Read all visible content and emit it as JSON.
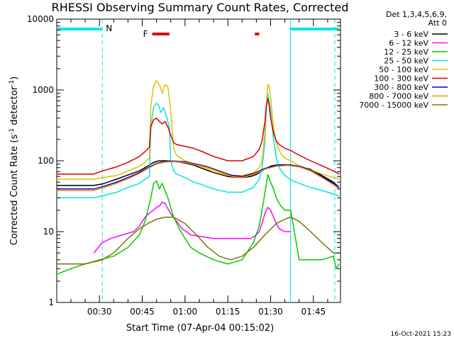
{
  "chart_data": {
    "type": "line",
    "title": "RHESSI Observing Summary Count Rates, Corrected",
    "xlabel": "Start Time (07-Apr-04 00:15:02)",
    "ylabel": "Corrected Count Rate (s",
    "ylabel_sup": "-1",
    "ylabel_mid": " detector",
    "ylabel_end": ")",
    "y_scale": "log",
    "ylim": [
      1,
      10000
    ],
    "xlim_minutes": [
      15.03,
      114.5
    ],
    "x_tick_labels": [
      "00:30",
      "00:45",
      "01:00",
      "01:15",
      "01:30",
      "01:45"
    ],
    "x_tick_minutes": [
      30,
      45,
      60,
      75,
      90,
      105
    ],
    "y_tick_labels": [
      "1",
      "10",
      "100",
      "1000",
      "10000"
    ],
    "y_tick_values": [
      1,
      10,
      100,
      1000,
      10000
    ],
    "legend_header": [
      "Det 1,3,4,5,6,9,",
      "Att 0"
    ],
    "legend_position": "right",
    "footer_date": "16-Oct-2021 15:23",
    "markers": {
      "night_label": "N",
      "flare_label": "F",
      "night_color": "#00e5e5",
      "flare_color": "#dd0000",
      "night_intervals_min": [
        [
          15.03,
          31.0
        ],
        [
          97.0,
          114.0
        ]
      ],
      "flare_intervals_min": [
        [
          48.5,
          54.5
        ],
        [
          84.5,
          86.0
        ]
      ],
      "boundaries_min": [
        31.0,
        97.0,
        112.5
      ]
    },
    "series": [
      {
        "name": "3 - 6 keV",
        "color": "#000000",
        "x": [
          15,
          28,
          31,
          36,
          40,
          44,
          46,
          48,
          49,
          50,
          51,
          52,
          53,
          55,
          57,
          60,
          63,
          66,
          70,
          75,
          80,
          83,
          85,
          86,
          87,
          88,
          89,
          90,
          91,
          92,
          93,
          94,
          95,
          97,
          100,
          104,
          108,
          112,
          114
        ],
        "y": [
          45,
          45,
          47,
          55,
          63,
          72,
          80,
          90,
          95,
          98,
          100,
          100,
          100,
          99,
          97,
          93,
          87,
          78,
          68,
          60,
          58,
          60,
          64,
          68,
          72,
          76,
          80,
          84,
          86,
          87,
          88,
          88,
          88,
          87,
          83,
          76,
          62,
          50,
          42
        ]
      },
      {
        "name": "6 - 12 keV",
        "color": "#ff00ff",
        "x": [
          28,
          31,
          34,
          38,
          42,
          44,
          46,
          48,
          49,
          50,
          51,
          52,
          53,
          54,
          55,
          57,
          59,
          62,
          66,
          70,
          75,
          80,
          83,
          85,
          86,
          87,
          88,
          89,
          90,
          91,
          92,
          93,
          95,
          97
        ],
        "y": [
          5,
          7,
          8,
          9,
          10,
          12,
          16,
          19,
          20,
          22,
          23,
          26,
          25,
          21,
          18,
          14,
          11,
          9,
          8.5,
          8,
          8,
          8,
          8,
          9,
          10,
          13,
          18,
          22,
          20,
          16,
          13,
          11,
          10,
          10
        ]
      },
      {
        "name": "12 - 25 keV",
        "color": "#00cc00",
        "x": [
          15,
          20,
          25,
          30,
          35,
          40,
          44,
          46,
          48,
          49,
          50,
          51,
          52,
          53,
          54,
          55,
          56,
          58,
          60,
          62,
          65,
          70,
          75,
          80,
          84,
          86,
          87,
          88,
          89,
          90,
          91,
          92,
          93,
          94,
          95,
          97,
          98,
          100,
          104,
          108,
          112,
          113,
          114
        ],
        "y": [
          2.5,
          3,
          3.5,
          4,
          4.5,
          6,
          9,
          14,
          30,
          48,
          52,
          40,
          48,
          38,
          30,
          22,
          16,
          11,
          8,
          6,
          5,
          4,
          3.5,
          4,
          7,
          12,
          20,
          35,
          64,
          50,
          40,
          30,
          25,
          22,
          20,
          20,
          12,
          4,
          4,
          4,
          4.5,
          3,
          3.5
        ]
      },
      {
        "name": "25 - 50 keV",
        "color": "#00e5e5",
        "x": [
          15,
          28,
          31,
          36,
          40,
          44,
          46,
          47.5,
          48,
          49,
          50,
          50.8,
          51.5,
          52.5,
          53.5,
          54.5,
          55,
          56,
          57,
          60,
          63,
          66,
          70,
          75,
          80,
          84,
          86,
          87,
          88,
          88.5,
          89,
          89.5,
          90,
          91,
          92,
          93,
          94,
          95,
          97,
          100,
          104,
          108,
          112,
          114
        ],
        "y": [
          30,
          30,
          32,
          36,
          42,
          48,
          55,
          60,
          300,
          580,
          650,
          600,
          480,
          560,
          420,
          300,
          100,
          72,
          65,
          58,
          50,
          46,
          40,
          36,
          36,
          42,
          55,
          80,
          180,
          500,
          880,
          700,
          500,
          200,
          110,
          80,
          70,
          62,
          54,
          48,
          42,
          38,
          34,
          32
        ]
      },
      {
        "name": "50 - 100 keV",
        "color": "#e0c000",
        "x": [
          15,
          28,
          31,
          36,
          40,
          44,
          46,
          47.5,
          48,
          49,
          50,
          51,
          52,
          53,
          54,
          55,
          56,
          57,
          60,
          63,
          66,
          70,
          75,
          80,
          84,
          86,
          87,
          88,
          88.5,
          89,
          89.5,
          90,
          91,
          92,
          93,
          94,
          95,
          97,
          100,
          104,
          108,
          112,
          114
        ],
        "y": [
          55,
          55,
          58,
          62,
          72,
          84,
          95,
          110,
          600,
          1150,
          1350,
          1200,
          900,
          1200,
          1100,
          500,
          150,
          120,
          100,
          90,
          82,
          70,
          62,
          62,
          68,
          80,
          100,
          250,
          600,
          1200,
          1100,
          800,
          300,
          180,
          140,
          120,
          110,
          100,
          85,
          75,
          65,
          58,
          55
        ]
      },
      {
        "name": "100 - 300 keV",
        "color": "#dd0000",
        "x": [
          15,
          28,
          31,
          36,
          40,
          44,
          46,
          47.5,
          48,
          49,
          50,
          51,
          52,
          53,
          54,
          55,
          56,
          57,
          60,
          63,
          66,
          70,
          75,
          80,
          84,
          86,
          87,
          88,
          88.5,
          89,
          89.5,
          90,
          91,
          92,
          93,
          94,
          95,
          97,
          100,
          104,
          108,
          112,
          114
        ],
        "y": [
          65,
          65,
          72,
          82,
          95,
          115,
          135,
          155,
          300,
          380,
          400,
          360,
          330,
          360,
          300,
          230,
          180,
          170,
          160,
          150,
          135,
          115,
          100,
          100,
          115,
          145,
          190,
          350,
          600,
          760,
          600,
          400,
          250,
          190,
          170,
          160,
          150,
          140,
          120,
          100,
          85,
          72,
          65
        ]
      },
      {
        "name": "300 - 800 keV",
        "color": "#0000cc",
        "x": [
          15,
          28,
          31,
          36,
          40,
          44,
          47,
          50,
          53,
          56,
          60,
          64,
          68,
          72,
          76,
          80,
          84,
          88,
          92,
          96,
          100,
          104,
          108,
          112,
          114
        ],
        "y": [
          40,
          40,
          43,
          50,
          58,
          68,
          80,
          92,
          98,
          99,
          97,
          90,
          82,
          72,
          63,
          60,
          66,
          78,
          86,
          88,
          84,
          74,
          60,
          48,
          42
        ]
      },
      {
        "name": "800 - 7000 keV",
        "color": "#ff8800",
        "x": [
          15,
          28,
          31,
          36,
          40,
          44,
          47,
          50,
          53,
          56,
          60,
          64,
          68,
          72,
          76,
          80,
          84,
          88,
          92,
          96,
          100,
          104,
          108,
          112,
          114
        ],
        "y": [
          38,
          38,
          41,
          48,
          56,
          66,
          78,
          90,
          96,
          97,
          95,
          88,
          80,
          70,
          61,
          58,
          64,
          76,
          84,
          86,
          82,
          72,
          58,
          46,
          40
        ]
      },
      {
        "name": "7000 - 15000 keV",
        "color": "#807000",
        "x": [
          15,
          25,
          31,
          35,
          40,
          44,
          47,
          50,
          53,
          56,
          60,
          64,
          68,
          72,
          76,
          80,
          84,
          88,
          92,
          95,
          97,
          100,
          104,
          108,
          112,
          114
        ],
        "y": [
          3.5,
          3.5,
          4,
          5,
          8,
          11,
          13,
          15,
          16,
          16,
          13,
          9,
          6,
          4.5,
          4,
          4.5,
          6,
          9,
          13,
          15,
          16,
          14,
          10,
          7,
          5,
          5
        ]
      }
    ]
  }
}
